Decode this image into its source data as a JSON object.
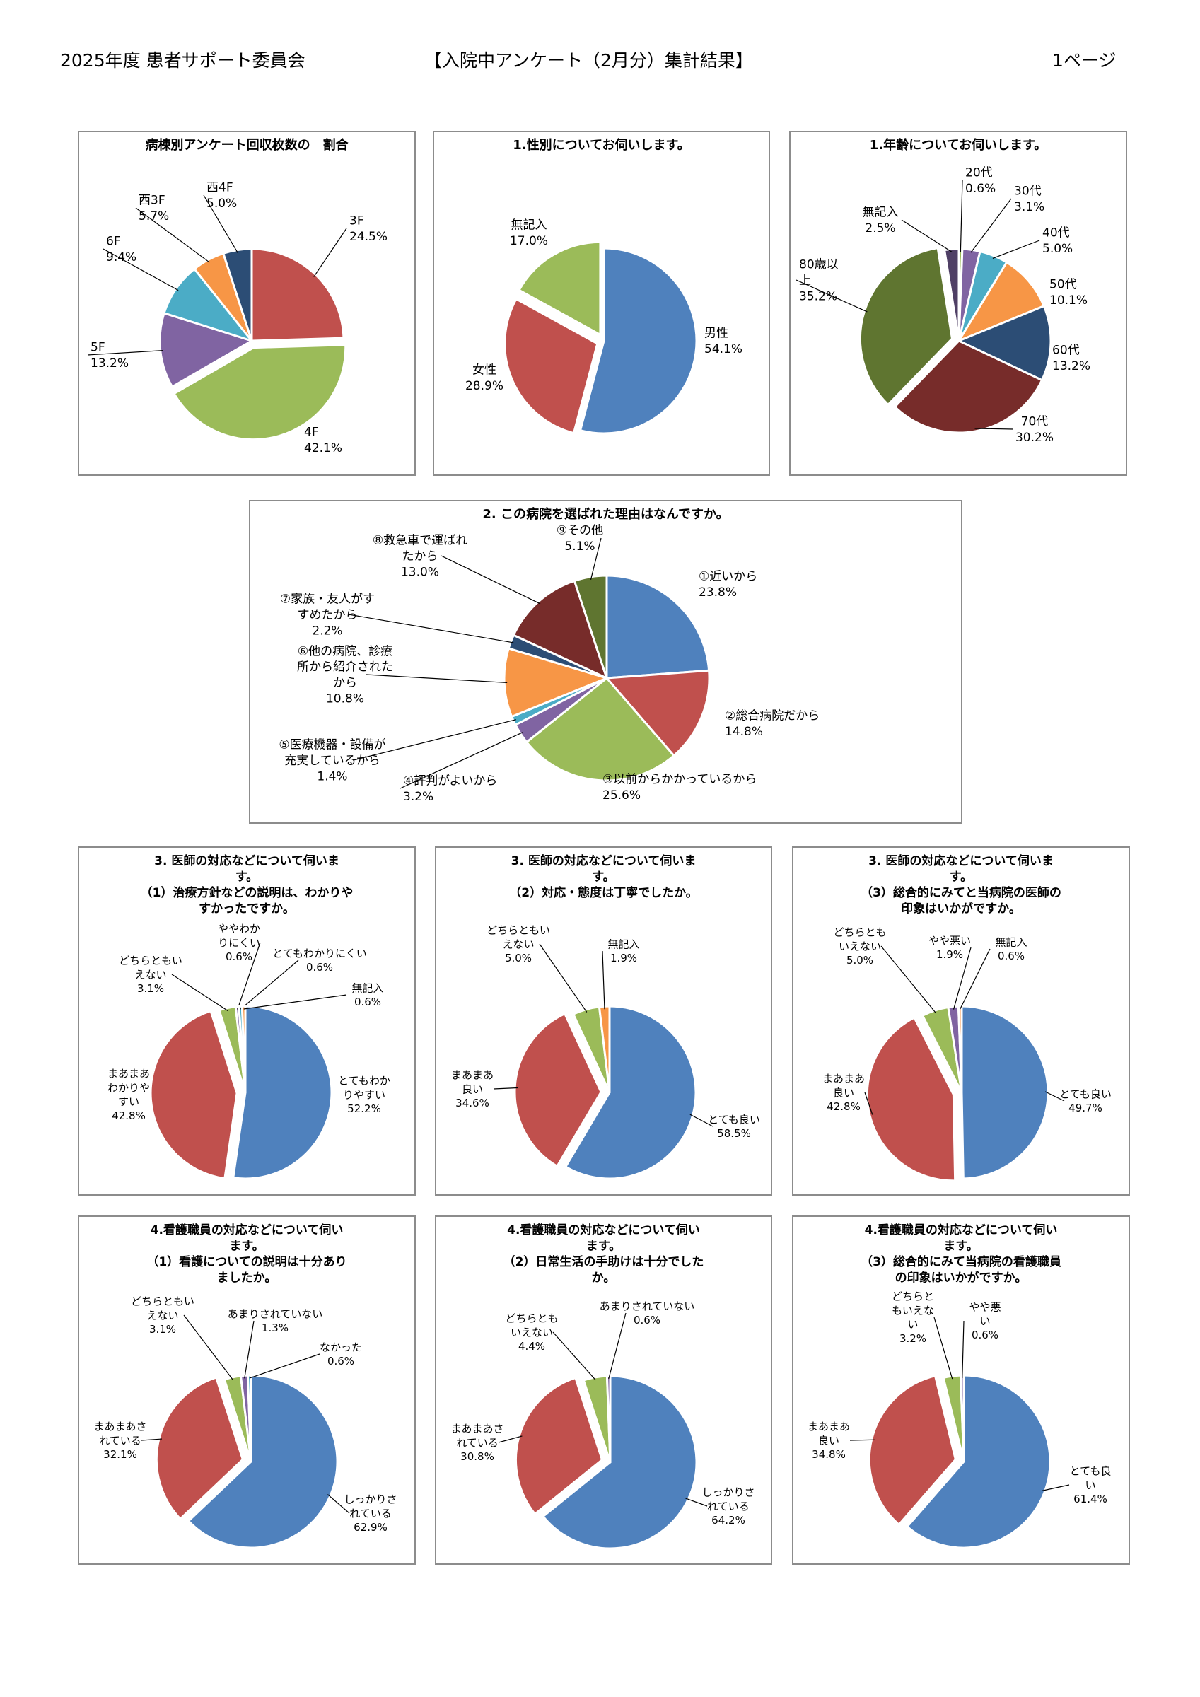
{
  "header": {
    "left": "2025年度 患者サポート委員会",
    "center": "【入院中アンケート（2月分）集計結果】",
    "right": "1ページ"
  },
  "colors": {
    "blue": "#4F81BD",
    "red": "#C0504D",
    "green": "#9BBB59",
    "purple": "#8064A2",
    "teal": "#4BACC6",
    "orange": "#F79646",
    "navy": "#2C4D75",
    "darkred": "#772C2A",
    "olive": "#5F7530",
    "darkgreen": "#4F6228",
    "border": "#8C8C8C"
  },
  "chart_data": [
    {
      "type": "pie",
      "title": [
        "病棟別アンケート回収枚数の　割合"
      ],
      "slices": [
        {
          "label": [
            "3F"
          ],
          "value": 24.5,
          "value_text": "24.5%",
          "color": "#C0504D"
        },
        {
          "label": [
            "4F"
          ],
          "value": 42.1,
          "value_text": "42.1%",
          "color": "#9BBB59"
        },
        {
          "label": [
            "5F"
          ],
          "value": 13.2,
          "value_text": "13.2%",
          "color": "#8064A2"
        },
        {
          "label": [
            "6F"
          ],
          "value": 9.4,
          "value_text": "9.4%",
          "color": "#4BACC6"
        },
        {
          "label": [
            "西3F"
          ],
          "value": 5.7,
          "value_text": "5.7%",
          "color": "#F79646"
        },
        {
          "label": [
            "西4F"
          ],
          "value": 5.0,
          "value_text": "5.0%",
          "color": "#2C4D75"
        }
      ]
    },
    {
      "type": "pie",
      "title": [
        "1.性別についてお伺いします。"
      ],
      "slices": [
        {
          "label": [
            "男性"
          ],
          "value": 54.1,
          "value_text": "54.1%",
          "color": "#4F81BD"
        },
        {
          "label": [
            "女性"
          ],
          "value": 28.9,
          "value_text": "28.9%",
          "color": "#C0504D"
        },
        {
          "label": [
            "無記入"
          ],
          "value": 17.0,
          "value_text": "17.0%",
          "color": "#9BBB59"
        }
      ]
    },
    {
      "type": "pie",
      "title": [
        "1.年齢についてお伺いします。"
      ],
      "slices": [
        {
          "label": [
            "20代"
          ],
          "value": 0.6,
          "value_text": "0.6%",
          "color": "#9BBB59"
        },
        {
          "label": [
            "30代"
          ],
          "value": 3.1,
          "value_text": "3.1%",
          "color": "#8064A2"
        },
        {
          "label": [
            "40代"
          ],
          "value": 5.0,
          "value_text": "5.0%",
          "color": "#4BACC6"
        },
        {
          "label": [
            "50代"
          ],
          "value": 10.1,
          "value_text": "10.1%",
          "color": "#F79646"
        },
        {
          "label": [
            "60代"
          ],
          "value": 13.2,
          "value_text": "13.2%",
          "color": "#2C4D75"
        },
        {
          "label": [
            "70代"
          ],
          "value": 30.2,
          "value_text": "30.2%",
          "color": "#772C2A"
        },
        {
          "label": [
            "80歳以",
            "上"
          ],
          "value": 35.2,
          "value_text": "35.2%",
          "color": "#5F7530"
        },
        {
          "label": [
            "無記入"
          ],
          "value": 2.5,
          "value_text": "2.5%",
          "color": "#4F3F65"
        }
      ]
    },
    {
      "type": "pie",
      "title": [
        "2. この病院を選ばれた理由はなんですか。"
      ],
      "slices": [
        {
          "label": [
            "①近いから"
          ],
          "value": 23.8,
          "value_text": "23.8%",
          "color": "#4F81BD"
        },
        {
          "label": [
            "②総合病院だから"
          ],
          "value": 14.8,
          "value_text": "14.8%",
          "color": "#C0504D"
        },
        {
          "label": [
            "③以前からかかっているから"
          ],
          "value": 25.6,
          "value_text": "25.6%",
          "color": "#9BBB59"
        },
        {
          "label": [
            "④評判がよいから"
          ],
          "value": 3.2,
          "value_text": "3.2%",
          "color": "#8064A2"
        },
        {
          "label": [
            "⑤医療機器・設備が",
            "充実しているから"
          ],
          "value": 1.4,
          "value_text": "1.4%",
          "color": "#4BACC6"
        },
        {
          "label": [
            "⑥他の病院、診療",
            "所から紹介された",
            "から"
          ],
          "value": 10.8,
          "value_text": "10.8%",
          "color": "#F79646"
        },
        {
          "label": [
            "⑦家族・友人がす",
            "すめたから"
          ],
          "value": 2.2,
          "value_text": "2.2%",
          "color": "#2C4D75"
        },
        {
          "label": [
            "⑧救急車で運ばれ",
            "たから"
          ],
          "value": 13.0,
          "value_text": "13.0%",
          "color": "#772C2A"
        },
        {
          "label": [
            "⑨その他"
          ],
          "value": 5.1,
          "value_text": "5.1%",
          "color": "#5F7530"
        }
      ]
    },
    {
      "type": "pie",
      "title": [
        "3. 医師の対応などについて伺いま",
        "す。",
        "（1）治療方針などの説明は、わかりや",
        "すかったですか。"
      ],
      "slices": [
        {
          "label": [
            "とてもわか",
            "りやすい"
          ],
          "value": 52.2,
          "value_text": "52.2%",
          "color": "#4F81BD"
        },
        {
          "label": [
            "まあまあ",
            "わかりや",
            "すい"
          ],
          "value": 42.8,
          "value_text": "42.8%",
          "color": "#C0504D"
        },
        {
          "label": [
            "どちらともい",
            "えない"
          ],
          "value": 3.1,
          "value_text": "3.1%",
          "color": "#9BBB59"
        },
        {
          "label": [
            "ややわか",
            "りにくい"
          ],
          "value": 0.6,
          "value_text": "0.6%",
          "color": "#8064A2"
        },
        {
          "label": [
            "とてもわかりにくい"
          ],
          "value": 0.6,
          "value_text": "0.6%",
          "color": "#4BACC6"
        },
        {
          "label": [
            "無記入"
          ],
          "value": 0.6,
          "value_text": "0.6%",
          "color": "#F79646"
        }
      ]
    },
    {
      "type": "pie",
      "title": [
        "3. 医師の対応などについて伺いま",
        "す。",
        "（2）対応・態度は丁寧でしたか。"
      ],
      "slices": [
        {
          "label": [
            "とても良い"
          ],
          "value": 58.5,
          "value_text": "58.5%",
          "color": "#4F81BD"
        },
        {
          "label": [
            "まあまあ",
            "良い"
          ],
          "value": 34.6,
          "value_text": "34.6%",
          "color": "#C0504D"
        },
        {
          "label": [
            "どちらともい",
            "えない"
          ],
          "value": 5.0,
          "value_text": "5.0%",
          "color": "#9BBB59"
        },
        {
          "label": [
            "無記入"
          ],
          "value": 1.9,
          "value_text": "1.9%",
          "color": "#F79646"
        }
      ]
    },
    {
      "type": "pie",
      "title": [
        "3. 医師の対応などについて伺いま",
        "す。",
        "（3）総合的にみてと当病院の医師の",
        "印象はいかがですか。"
      ],
      "slices": [
        {
          "label": [
            "とても良い"
          ],
          "value": 49.7,
          "value_text": "49.7%",
          "color": "#4F81BD"
        },
        {
          "label": [
            "まあまあ",
            "良い"
          ],
          "value": 42.8,
          "value_text": "42.8%",
          "color": "#C0504D"
        },
        {
          "label": [
            "どちらとも",
            "いえない"
          ],
          "value": 5.0,
          "value_text": "5.0%",
          "color": "#9BBB59"
        },
        {
          "label": [
            "やや悪い"
          ],
          "value": 1.9,
          "value_text": "1.9%",
          "color": "#8064A2"
        },
        {
          "label": [
            "無記入"
          ],
          "value": 0.6,
          "value_text": "0.6%",
          "color": "#F79646"
        }
      ]
    },
    {
      "type": "pie",
      "title": [
        "4.看護職員の対応などについて伺い",
        "ます。",
        "（1）看護についての説明は十分あり",
        "ましたか。"
      ],
      "slices": [
        {
          "label": [
            "しっかりさ",
            "れている"
          ],
          "value": 62.9,
          "value_text": "62.9%",
          "color": "#4F81BD"
        },
        {
          "label": [
            "まあまあさ",
            "れている"
          ],
          "value": 32.1,
          "value_text": "32.1%",
          "color": "#C0504D"
        },
        {
          "label": [
            "どちらともい",
            "えない"
          ],
          "value": 3.1,
          "value_text": "3.1%",
          "color": "#9BBB59"
        },
        {
          "label": [
            "あまりされていない"
          ],
          "value": 1.3,
          "value_text": "1.3%",
          "color": "#8064A2"
        },
        {
          "label": [
            "なかった"
          ],
          "value": 0.6,
          "value_text": "0.6%",
          "color": "#4BACC6"
        }
      ]
    },
    {
      "type": "pie",
      "title": [
        "4.看護職員の対応などについて伺い",
        "ます。",
        "（2）日常生活の手助けは十分でした",
        "か。"
      ],
      "slices": [
        {
          "label": [
            "しっかりさ",
            "れている"
          ],
          "value": 64.2,
          "value_text": "64.2%",
          "color": "#4F81BD"
        },
        {
          "label": [
            "まあまあさ",
            "れている"
          ],
          "value": 30.8,
          "value_text": "30.8%",
          "color": "#C0504D"
        },
        {
          "label": [
            "どちらとも",
            "いえない"
          ],
          "value": 4.4,
          "value_text": "4.4%",
          "color": "#9BBB59"
        },
        {
          "label": [
            "あまりされていない"
          ],
          "value": 0.6,
          "value_text": "0.6%",
          "color": "#8064A2"
        }
      ]
    },
    {
      "type": "pie",
      "title": [
        "4.看護職員の対応などについて伺い",
        "ます。",
        "（3）総合的にみて当病院の看護職員",
        "の印象はいかがですか。"
      ],
      "slices": [
        {
          "label": [
            "とても良",
            "い"
          ],
          "value": 61.4,
          "value_text": "61.4%",
          "color": "#4F81BD"
        },
        {
          "label": [
            "まあまあ",
            "良い"
          ],
          "value": 34.8,
          "value_text": "34.8%",
          "color": "#C0504D"
        },
        {
          "label": [
            "どちらと",
            "もいえな",
            "い"
          ],
          "value": 3.2,
          "value_text": "3.2%",
          "color": "#9BBB59"
        },
        {
          "label": [
            "やや悪",
            "い"
          ],
          "value": 0.6,
          "value_text": "0.6%",
          "color": "#8064A2"
        }
      ]
    }
  ]
}
